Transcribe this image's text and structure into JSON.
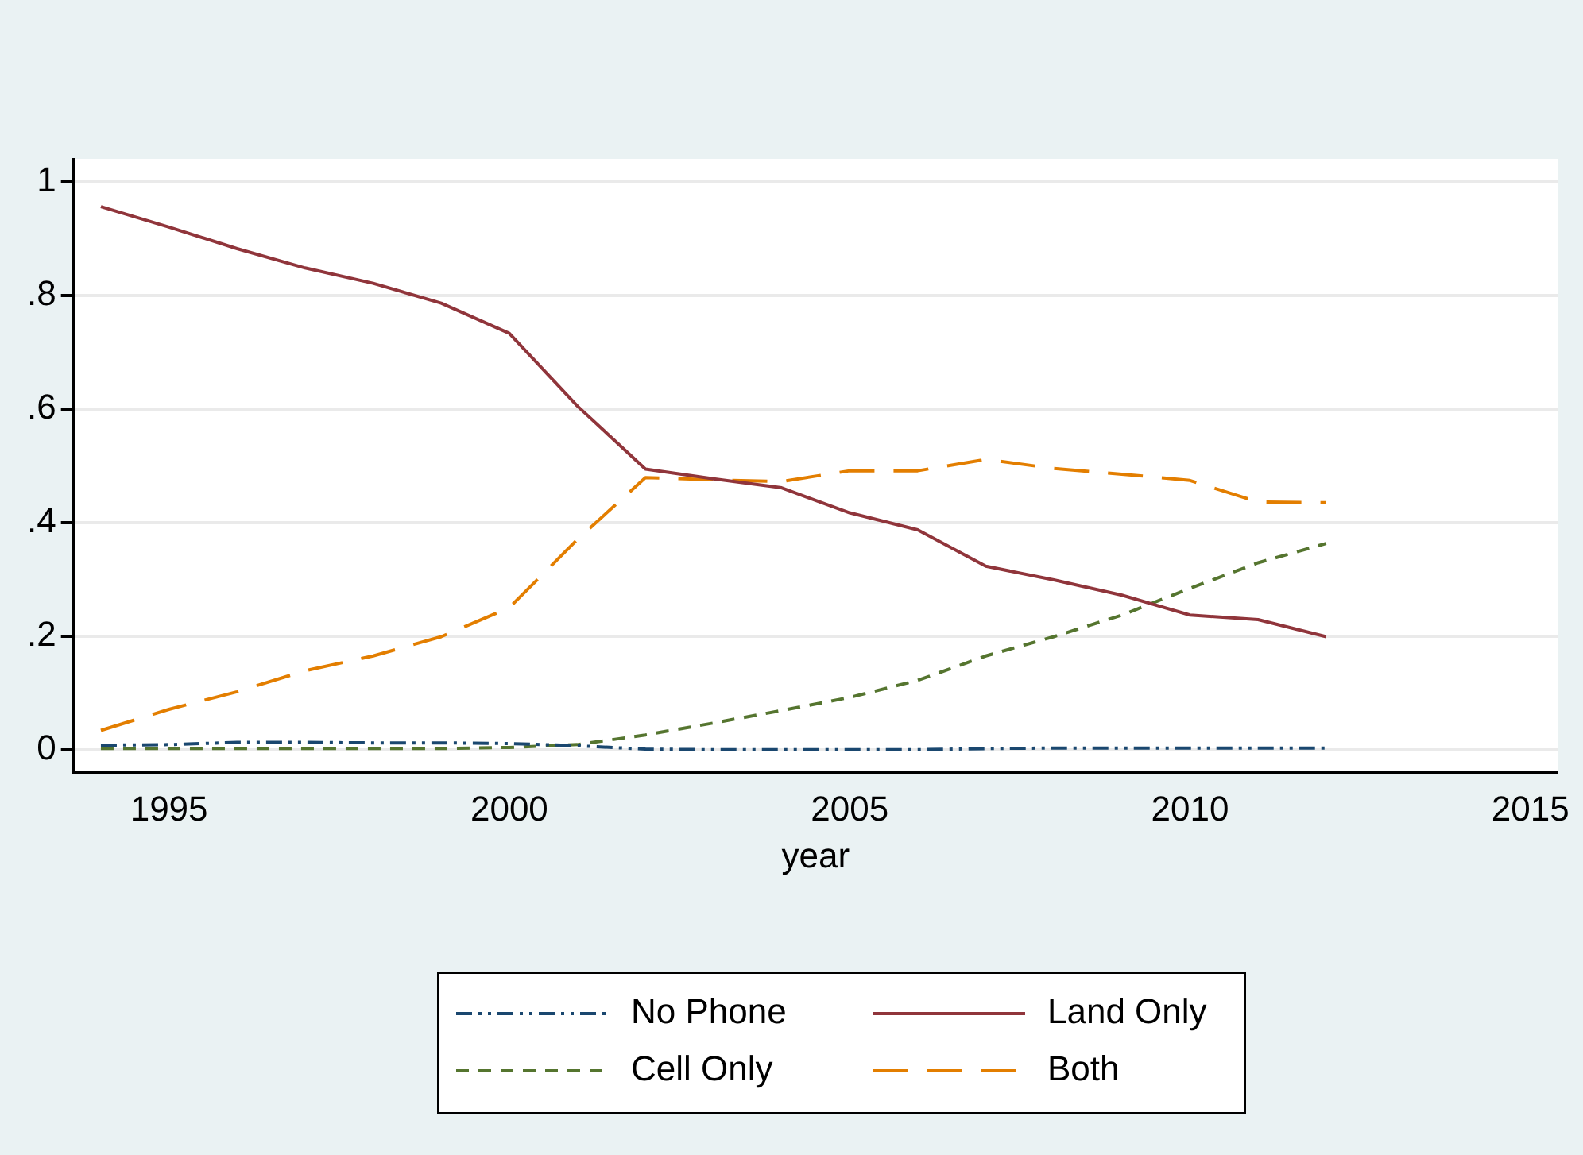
{
  "chart_data": {
    "type": "line",
    "xlabel": "year",
    "x": [
      1994,
      1995,
      1996,
      1997,
      1998,
      1999,
      2000,
      2001,
      2002,
      2003,
      2004,
      2005,
      2006,
      2007,
      2008,
      2009,
      2010,
      2011,
      2012
    ],
    "xlim": [
      1993.6,
      2015.4
    ],
    "xticks": [
      1995,
      2000,
      2005,
      2010,
      2015
    ],
    "ylim": [
      -0.04,
      1.04
    ],
    "yticks": [
      0,
      {
        "value": 0.2,
        "label": ".2"
      },
      {
        "value": 0.4,
        "label": ".4"
      },
      {
        "value": 0.6,
        "label": ".6"
      },
      {
        "value": 0.8,
        "label": ".8"
      },
      1
    ],
    "grid": "y",
    "legend": "bottom",
    "marker": "none",
    "series": [
      {
        "name": "No Phone",
        "color": "#1a476f",
        "line_style": "dashdot",
        "values": [
          0.008,
          0.009,
          0.013,
          0.013,
          0.012,
          0.012,
          0.011,
          0.007,
          0.001,
          0.0,
          0.0,
          0.0,
          0.0,
          0.002,
          0.003,
          0.003,
          0.003,
          0.003,
          0.003
        ]
      },
      {
        "name": "Land Only",
        "color": "#90353b",
        "line_style": "solid",
        "values": [
          0.956,
          0.92,
          0.882,
          0.848,
          0.821,
          0.786,
          0.733,
          0.605,
          0.494,
          0.477,
          0.461,
          0.417,
          0.387,
          0.323,
          0.299,
          0.272,
          0.237,
          0.229,
          0.199
        ]
      },
      {
        "name": "Cell Only",
        "color": "#55752f",
        "line_style": "dashed",
        "values": [
          0.002,
          0.002,
          0.002,
          0.002,
          0.002,
          0.002,
          0.004,
          0.009,
          0.026,
          0.047,
          0.069,
          0.092,
          0.122,
          0.165,
          0.199,
          0.237,
          0.284,
          0.329,
          0.363
        ]
      },
      {
        "name": "Both",
        "color": "#e37e00",
        "line_style": "longdash",
        "values": [
          0.034,
          0.071,
          0.102,
          0.139,
          0.165,
          0.199,
          0.25,
          0.37,
          0.479,
          0.475,
          0.472,
          0.491,
          0.491,
          0.511,
          0.495,
          0.485,
          0.474,
          0.436,
          0.435
        ]
      }
    ]
  }
}
